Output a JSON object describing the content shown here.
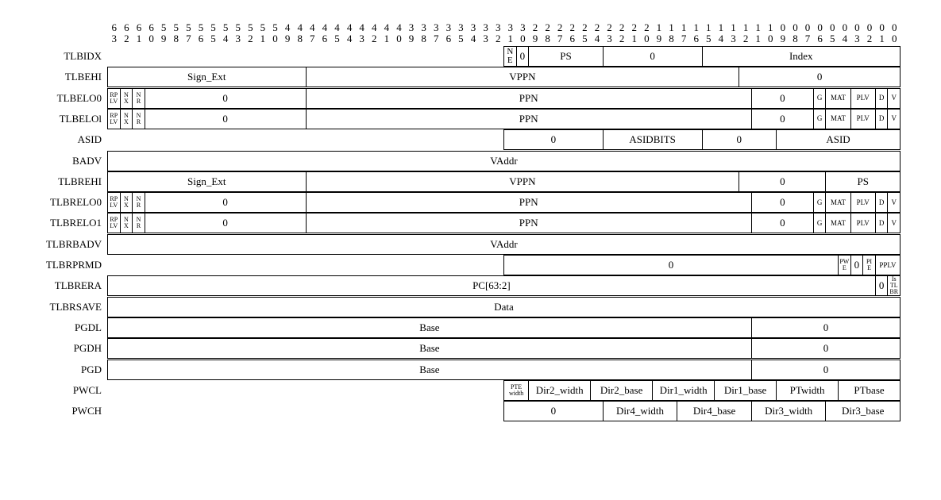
{
  "bit_numbers": {
    "tens": [
      "6",
      "6",
      "6",
      "6",
      "5",
      "5",
      "5",
      "5",
      "5",
      "5",
      "5",
      "5",
      "5",
      "5",
      "4",
      "4",
      "4",
      "4",
      "4",
      "4",
      "4",
      "4",
      "4",
      "4",
      "3",
      "3",
      "3",
      "3",
      "3",
      "3",
      "3",
      "3",
      "3",
      "3",
      "2",
      "2",
      "2",
      "2",
      "2",
      "2",
      "2",
      "2",
      "2",
      "2",
      "1",
      "1",
      "1",
      "1",
      "1",
      "1",
      "1",
      "1",
      "1",
      "1",
      "0",
      "0",
      "0",
      "0",
      "0",
      "0",
      "0",
      "0",
      "0",
      "0"
    ],
    "units": [
      "3",
      "2",
      "1",
      "0",
      "9",
      "8",
      "7",
      "6",
      "5",
      "4",
      "3",
      "2",
      "1",
      "0",
      "9",
      "8",
      "7",
      "6",
      "5",
      "4",
      "3",
      "2",
      "1",
      "0",
      "9",
      "8",
      "7",
      "6",
      "5",
      "4",
      "3",
      "2",
      "1",
      "0",
      "9",
      "8",
      "7",
      "6",
      "5",
      "4",
      "3",
      "2",
      "1",
      "0",
      "9",
      "8",
      "7",
      "6",
      "5",
      "4",
      "3",
      "2",
      "1",
      "0",
      "9",
      "8",
      "7",
      "6",
      "5",
      "4",
      "3",
      "2",
      "1",
      "0"
    ]
  },
  "registers": [
    {
      "name": "TLBIDX",
      "fields": [
        {
          "label": "NE",
          "hi": 31,
          "lo": 31,
          "style": "stack"
        },
        {
          "label": "0",
          "hi": 30,
          "lo": 30
        },
        {
          "label": "PS",
          "hi": 29,
          "lo": 24
        },
        {
          "label": "0",
          "hi": 23,
          "lo": 16
        },
        {
          "label": "Index",
          "hi": 15,
          "lo": 0
        }
      ]
    },
    {
      "name": "TLBEHI",
      "fields": [
        {
          "label": "Sign_Ext",
          "hi": 63,
          "lo": 48
        },
        {
          "label": "VPPN",
          "hi": 47,
          "lo": 13
        },
        {
          "label": "0",
          "hi": 12,
          "lo": 0
        }
      ]
    },
    {
      "name": "TLBELO0",
      "fields": [
        {
          "label": "RPLV",
          "hi": 63,
          "lo": 63,
          "style": "stack-xs"
        },
        {
          "label": "NX",
          "hi": 62,
          "lo": 62,
          "style": "stack-xs"
        },
        {
          "label": "NR",
          "hi": 61,
          "lo": 61,
          "style": "stack-xs"
        },
        {
          "label": "0",
          "hi": 60,
          "lo": 48
        },
        {
          "label": "PPN",
          "hi": 47,
          "lo": 12
        },
        {
          "label": "0",
          "hi": 11,
          "lo": 7
        },
        {
          "label": "G",
          "hi": 6,
          "lo": 6,
          "style": "sm"
        },
        {
          "label": "MAT",
          "hi": 5,
          "lo": 4,
          "style": "sm"
        },
        {
          "label": "PLV",
          "hi": 3,
          "lo": 2,
          "style": "sm"
        },
        {
          "label": "D",
          "hi": 1,
          "lo": 1,
          "style": "sm"
        },
        {
          "label": "V",
          "hi": 0,
          "lo": 0,
          "style": "sm"
        }
      ]
    },
    {
      "name": "TLBELOl",
      "fields": [
        {
          "label": "RPLV",
          "hi": 63,
          "lo": 63,
          "style": "stack-xs"
        },
        {
          "label": "NX",
          "hi": 62,
          "lo": 62,
          "style": "stack-xs"
        },
        {
          "label": "NR",
          "hi": 61,
          "lo": 61,
          "style": "stack-xs"
        },
        {
          "label": "0",
          "hi": 60,
          "lo": 48
        },
        {
          "label": "PPN",
          "hi": 47,
          "lo": 12
        },
        {
          "label": "0",
          "hi": 11,
          "lo": 7
        },
        {
          "label": "G",
          "hi": 6,
          "lo": 6,
          "style": "sm"
        },
        {
          "label": "MAT",
          "hi": 5,
          "lo": 4,
          "style": "sm"
        },
        {
          "label": "PLV",
          "hi": 3,
          "lo": 2,
          "style": "sm"
        },
        {
          "label": "D",
          "hi": 1,
          "lo": 1,
          "style": "sm"
        },
        {
          "label": "V",
          "hi": 0,
          "lo": 0,
          "style": "sm"
        }
      ]
    },
    {
      "name": "ASID",
      "fields": [
        {
          "label": "0",
          "hi": 31,
          "lo": 24
        },
        {
          "label": "ASIDBITS",
          "hi": 23,
          "lo": 16
        },
        {
          "label": "0",
          "hi": 15,
          "lo": 10
        },
        {
          "label": "ASID",
          "hi": 9,
          "lo": 0
        }
      ]
    },
    {
      "name": "BADV",
      "fields": [
        {
          "label": "VAddr",
          "hi": 63,
          "lo": 0
        }
      ]
    },
    {
      "name": "TLBREHI",
      "fields": [
        {
          "label": "Sign_Ext",
          "hi": 63,
          "lo": 48
        },
        {
          "label": "VPPN",
          "hi": 47,
          "lo": 13
        },
        {
          "label": "0",
          "hi": 12,
          "lo": 6
        },
        {
          "label": "PS",
          "hi": 5,
          "lo": 0
        }
      ]
    },
    {
      "name": "TLBRELO0",
      "fields": [
        {
          "label": "RPLV",
          "hi": 63,
          "lo": 63,
          "style": "stack-xs"
        },
        {
          "label": "NX",
          "hi": 62,
          "lo": 62,
          "style": "stack-xs"
        },
        {
          "label": "NR",
          "hi": 61,
          "lo": 61,
          "style": "stack-xs"
        },
        {
          "label": "0",
          "hi": 60,
          "lo": 48
        },
        {
          "label": "PPN",
          "hi": 47,
          "lo": 12
        },
        {
          "label": "0",
          "hi": 11,
          "lo": 7
        },
        {
          "label": "G",
          "hi": 6,
          "lo": 6,
          "style": "sm"
        },
        {
          "label": "MAT",
          "hi": 5,
          "lo": 4,
          "style": "sm"
        },
        {
          "label": "PLV",
          "hi": 3,
          "lo": 2,
          "style": "sm"
        },
        {
          "label": "D",
          "hi": 1,
          "lo": 1,
          "style": "sm"
        },
        {
          "label": "V",
          "hi": 0,
          "lo": 0,
          "style": "sm"
        }
      ]
    },
    {
      "name": "TLBRELO1",
      "fields": [
        {
          "label": "RPLV",
          "hi": 63,
          "lo": 63,
          "style": "stack-xs"
        },
        {
          "label": "NX",
          "hi": 62,
          "lo": 62,
          "style": "stack-xs"
        },
        {
          "label": "NR",
          "hi": 61,
          "lo": 61,
          "style": "stack-xs"
        },
        {
          "label": "0",
          "hi": 60,
          "lo": 48
        },
        {
          "label": "PPN",
          "hi": 47,
          "lo": 12
        },
        {
          "label": "0",
          "hi": 11,
          "lo": 7
        },
        {
          "label": "G",
          "hi": 6,
          "lo": 6,
          "style": "sm"
        },
        {
          "label": "MAT",
          "hi": 5,
          "lo": 4,
          "style": "sm"
        },
        {
          "label": "PLV",
          "hi": 3,
          "lo": 2,
          "style": "sm"
        },
        {
          "label": "D",
          "hi": 1,
          "lo": 1,
          "style": "sm"
        },
        {
          "label": "V",
          "hi": 0,
          "lo": 0,
          "style": "sm"
        }
      ]
    },
    {
      "name": "TLBRBADV",
      "fields": [
        {
          "label": "VAddr",
          "hi": 63,
          "lo": 0
        }
      ]
    },
    {
      "name": "TLBRPRMD",
      "fields": [
        {
          "label": "0",
          "hi": 31,
          "lo": 5
        },
        {
          "label": "PWE",
          "hi": 4,
          "lo": 4,
          "style": "stack-xs"
        },
        {
          "label": "0",
          "hi": 3,
          "lo": 3
        },
        {
          "label": "PIE",
          "hi": 2,
          "lo": 2,
          "style": "stack-xs"
        },
        {
          "label": "PPLV",
          "hi": 1,
          "lo": 0,
          "style": "sm"
        }
      ]
    },
    {
      "name": "TLBRERA",
      "fields": [
        {
          "label": "PC[63:2]",
          "hi": 63,
          "lo": 2
        },
        {
          "label": "0",
          "hi": 1,
          "lo": 1
        },
        {
          "label": "IsTLBR",
          "hi": 0,
          "lo": 0,
          "style": "stack-xs3"
        }
      ]
    },
    {
      "name": "TLBRSAVE",
      "fields": [
        {
          "label": "Data",
          "hi": 63,
          "lo": 0
        }
      ]
    },
    {
      "name": "PGDL",
      "fields": [
        {
          "label": "Base",
          "hi": 63,
          "lo": 12
        },
        {
          "label": "0",
          "hi": 11,
          "lo": 0
        }
      ]
    },
    {
      "name": "PGDH",
      "fields": [
        {
          "label": "Base",
          "hi": 63,
          "lo": 12
        },
        {
          "label": "0",
          "hi": 11,
          "lo": 0
        }
      ]
    },
    {
      "name": "PGD",
      "fields": [
        {
          "label": "Base",
          "hi": 63,
          "lo": 12
        },
        {
          "label": "0",
          "hi": 11,
          "lo": 0
        }
      ]
    },
    {
      "name": "PWCL",
      "fields": [
        {
          "label": "PTEwidth",
          "hi": 31,
          "lo": 30,
          "style": "stack-pte"
        },
        {
          "label": "Dir2_width",
          "hi": 29,
          "lo": 25
        },
        {
          "label": "Dir2_base",
          "hi": 24,
          "lo": 20
        },
        {
          "label": "Dir1_width",
          "hi": 19,
          "lo": 15
        },
        {
          "label": "Dir1_base",
          "hi": 14,
          "lo": 10
        },
        {
          "label": "PTwidth",
          "hi": 9,
          "lo": 5
        },
        {
          "label": "PTbase",
          "hi": 4,
          "lo": 0
        }
      ]
    },
    {
      "name": "PWCH",
      "fields": [
        {
          "label": "0",
          "hi": 31,
          "lo": 24
        },
        {
          "label": "Dir4_width",
          "hi": 23,
          "lo": 18
        },
        {
          "label": "Dir4_base",
          "hi": 17,
          "lo": 12
        },
        {
          "label": "Dir3_width",
          "hi": 11,
          "lo": 6
        },
        {
          "label": "Dir3_base",
          "hi": 5,
          "lo": 0
        }
      ]
    }
  ]
}
